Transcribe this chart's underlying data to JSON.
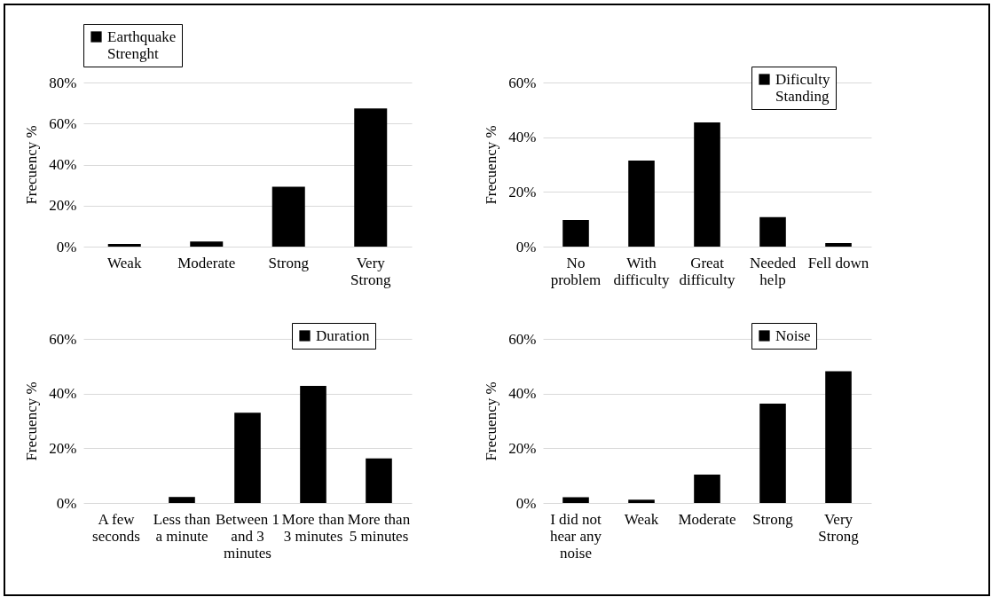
{
  "chart_data": [
    {
      "type": "bar",
      "categories": [
        "Weak",
        "Moderate",
        "Strong",
        "Very Strong"
      ],
      "series": [
        {
          "name": "Earthquake Strenght",
          "color": "#000000",
          "values": [
            1.3,
            2.5,
            29.2,
            67.3
          ]
        }
      ],
      "ylabel": "Frecuency %",
      "ylim": [
        0,
        80
      ],
      "yticks": [
        {
          "value": 0,
          "label": "0%"
        },
        {
          "value": 20,
          "label": "20%"
        },
        {
          "value": 40,
          "label": "40%"
        },
        {
          "value": 60,
          "label": "60%"
        },
        {
          "value": 80,
          "label": "80%"
        }
      ],
      "grid": "y",
      "legend": "top"
    },
    {
      "type": "bar",
      "categories": [
        "No problem",
        "With difficulty",
        "Great difficulty",
        "Needed help",
        "Fell down"
      ],
      "series": [
        {
          "name": "Dificulty Standing",
          "color": "#000000",
          "values": [
            9.7,
            31.5,
            45.4,
            10.8,
            1.3
          ]
        }
      ],
      "ylabel": "Frecuency %",
      "ylim": [
        0,
        60
      ],
      "yticks": [
        {
          "value": 0,
          "label": "0%"
        },
        {
          "value": 20,
          "label": "20%"
        },
        {
          "value": 40,
          "label": "40%"
        },
        {
          "value": 60,
          "label": "60%"
        }
      ],
      "grid": "y",
      "legend": "top right"
    },
    {
      "type": "bar",
      "categories": [
        "A few seconds",
        "Less than a minute",
        "Between 1 and 3 minutes",
        "More than 3 minutes",
        "More than 5 minutes"
      ],
      "series": [
        {
          "name": "Duration",
          "color": "#000000",
          "values": [
            0,
            2.2,
            33,
            42.8,
            16.3
          ]
        }
      ],
      "ylabel": "Frecuency %",
      "ylim": [
        0,
        60
      ],
      "yticks": [
        {
          "value": 0,
          "label": "0%"
        },
        {
          "value": 20,
          "label": "20%"
        },
        {
          "value": 40,
          "label": "40%"
        },
        {
          "value": 60,
          "label": "60%"
        }
      ],
      "grid": "y",
      "legend": "top right"
    },
    {
      "type": "bar",
      "categories": [
        "I did not hear any noise",
        "Weak",
        "Moderate",
        "Strong",
        "Very Strong"
      ],
      "series": [
        {
          "name": "Noise",
          "color": "#000000",
          "values": [
            2.1,
            1.2,
            10.4,
            36.3,
            48.2
          ]
        }
      ],
      "ylabel": "Frecuency %",
      "ylim": [
        0,
        60
      ],
      "yticks": [
        {
          "value": 0,
          "label": "0%"
        },
        {
          "value": 20,
          "label": "20%"
        },
        {
          "value": 40,
          "label": "40%"
        },
        {
          "value": 60,
          "label": "60%"
        }
      ],
      "grid": "y",
      "legend": "top right"
    }
  ]
}
